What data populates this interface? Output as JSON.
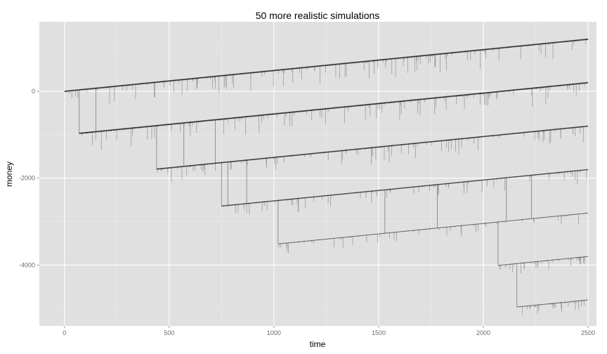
{
  "chart_data": {
    "type": "line",
    "title": "50 more realistic simulations",
    "xlabel": "time",
    "ylabel": "money",
    "xlim": [
      -120,
      2540
    ],
    "ylim": [
      -5400,
      1600
    ],
    "x_ticks": [
      0,
      500,
      1000,
      1500,
      2000,
      2500
    ],
    "y_ticks": [
      0,
      -2000,
      -4000
    ],
    "grid": true,
    "series_color": "#000000",
    "series_opacity": 0.35,
    "background": "#e0e0e0",
    "bands": [
      {
        "slope": 0.48,
        "intercept": 0,
        "start": 0,
        "strength": 1.0
      },
      {
        "slope": 0.48,
        "intercept": -1000,
        "start": 70,
        "strength": 1.0
      },
      {
        "slope": 0.48,
        "intercept": -2000,
        "start": 440,
        "strength": 0.85
      },
      {
        "slope": 0.48,
        "intercept": -3000,
        "start": 750,
        "strength": 0.6
      },
      {
        "slope": 0.48,
        "intercept": -4000,
        "start": 1020,
        "strength": 0.4
      },
      {
        "slope": 0.48,
        "intercept": -5000,
        "start": 2070,
        "strength": 0.3
      },
      {
        "slope": 0.48,
        "intercept": -6000,
        "start": 2160,
        "strength": 0.25
      }
    ],
    "transitions": [
      {
        "x": 70,
        "from": 0,
        "to": -1000
      },
      {
        "x": 150,
        "from": 0,
        "to": -1000
      },
      {
        "x": 440,
        "from": -1000,
        "to": -2000
      },
      {
        "x": 570,
        "from": -1000,
        "to": -2000
      },
      {
        "x": 720,
        "from": -1000,
        "to": -2000
      },
      {
        "x": 750,
        "from": -2000,
        "to": -3000
      },
      {
        "x": 780,
        "from": -2000,
        "to": -3000
      },
      {
        "x": 870,
        "from": -2000,
        "to": -3000
      },
      {
        "x": 1020,
        "from": -3000,
        "to": -4000
      },
      {
        "x": 1530,
        "from": -3000,
        "to": -4000
      },
      {
        "x": 1780,
        "from": -3000,
        "to": -4000
      },
      {
        "x": 2070,
        "from": -4000,
        "to": -5000
      },
      {
        "x": 2110,
        "from": -3000,
        "to": -4000
      },
      {
        "x": 2160,
        "from": -5000,
        "to": -6000
      },
      {
        "x": 2230,
        "from": -3000,
        "to": -4000
      }
    ]
  }
}
